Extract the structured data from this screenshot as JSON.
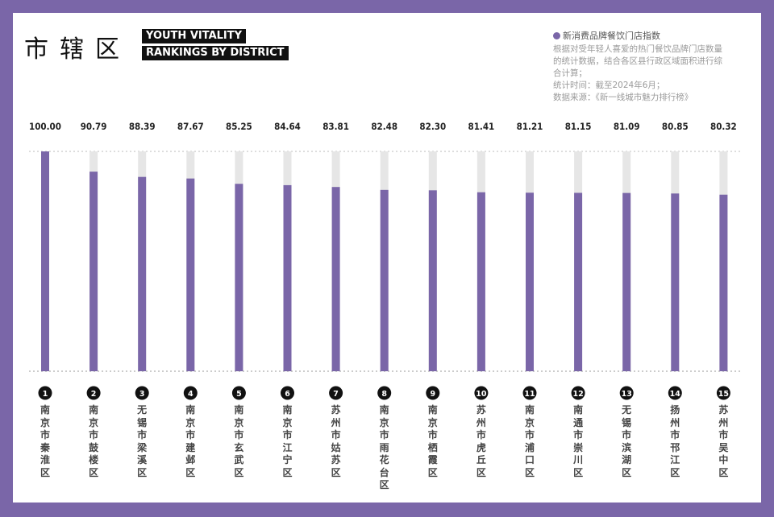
{
  "title": {
    "cn": "市辖区",
    "en_line1": "YOUTH VITALITY",
    "en_line2": "RANKINGS BY DISTRICT"
  },
  "legend": {
    "label": "新消费品牌餐饮门店指数",
    "color": "#7a66a8"
  },
  "notes": [
    "根据对受年轻人喜爱的热门餐饮品牌门店数量",
    "的统计数据，结合各区县行政区域面积进行综",
    "合计算；",
    "统计时间：截至2024年6月；",
    "数据来源：《新一线城市魅力排行榜》"
  ],
  "colors": {
    "frame": "#7a66a8",
    "bar": "#7a66a8",
    "track": "#e6e6e6",
    "rank_badge": "#111111"
  },
  "chart_data": {
    "type": "bar",
    "ylim": [
      0,
      100
    ],
    "grid": false,
    "series": [
      {
        "name": "新消费品牌餐饮门店指数",
        "values": [
          100.0,
          90.79,
          88.39,
          87.67,
          85.25,
          84.64,
          83.81,
          82.48,
          82.3,
          81.41,
          81.21,
          81.15,
          81.09,
          80.85,
          80.32
        ]
      }
    ],
    "value_labels": [
      "100.00",
      "90.79",
      "88.39",
      "87.67",
      "85.25",
      "84.64",
      "83.81",
      "82.48",
      "82.30",
      "81.41",
      "81.21",
      "81.15",
      "81.09",
      "80.85",
      "80.32"
    ],
    "ranks": [
      "1",
      "2",
      "3",
      "4",
      "5",
      "6",
      "7",
      "8",
      "9",
      "10",
      "11",
      "12",
      "13",
      "14",
      "15"
    ],
    "categories": [
      "南京市秦淮区",
      "南京市鼓楼区",
      "无锡市梁溪区",
      "南京市建邺区",
      "南京市玄武区",
      "南京市江宁区",
      "苏州市姑苏区",
      "南京市雨花台区",
      "南京市栖霞区",
      "苏州市虎丘区",
      "南京市浦口区",
      "南通市崇川区",
      "无锡市滨湖区",
      "扬州市邗江区",
      "苏州市吴中区"
    ]
  }
}
